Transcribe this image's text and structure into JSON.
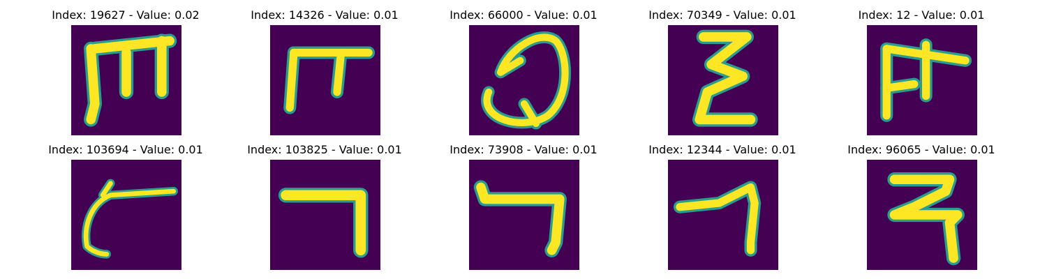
{
  "colors": {
    "background": "#440154",
    "stroke_core": "#fde725",
    "stroke_edge": "#2a9d8f"
  },
  "panels": [
    {
      "title": "Index: 19627 - Value: 0.02"
    },
    {
      "title": "Index: 14326 - Value: 0.01"
    },
    {
      "title": "Index: 66000 - Value: 0.01"
    },
    {
      "title": "Index: 70349 - Value: 0.01"
    },
    {
      "title": "Index: 12 - Value: 0.01"
    },
    {
      "title": "Index: 103694 - Value: 0.01"
    },
    {
      "title": "Index: 103825 - Value: 0.01"
    },
    {
      "title": "Index: 73908 - Value: 0.01"
    },
    {
      "title": "Index: 12344 - Value: 0.01"
    },
    {
      "title": "Index: 96065 - Value: 0.01"
    }
  ]
}
